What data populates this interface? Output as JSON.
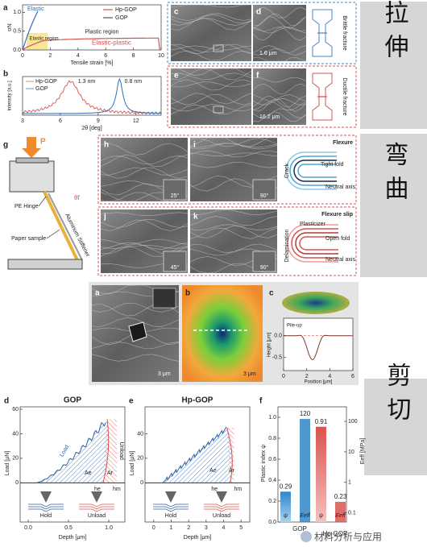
{
  "sections": [
    "拉伸",
    "弯曲",
    "剪切"
  ],
  "tension": {
    "a": {
      "label": "a",
      "ylabel": "σN",
      "xlabel": "Tensile strain [%]",
      "xlim": [
        0,
        10
      ],
      "xticks": [
        0,
        2,
        4,
        6,
        8,
        10
      ],
      "ylim": [
        0,
        1.2
      ],
      "yticks": [
        {
          "value": 0,
          "label": "0.0"
        },
        {
          "value": 0.5,
          "label": "0.5"
        },
        {
          "value": 1,
          "label": "1.0"
        }
      ],
      "legend": [
        "Hp-GOP",
        "GOP"
      ],
      "notes": [
        "Elastic",
        "Elastic region",
        "Plastic region",
        "Elastic-plastic"
      ]
    },
    "b": {
      "label": "b",
      "ylabel": "Intensity [a.u.]",
      "xlabel": "2θ [deg]",
      "xlim": [
        3,
        14
      ],
      "xticks": [
        3,
        6,
        9,
        12
      ],
      "legend": [
        "Hp-GOP",
        "GOP"
      ],
      "peaks": [
        "1.3 nm",
        "0.8 nm"
      ]
    },
    "images": [
      {
        "label": "c"
      },
      {
        "label": "d",
        "scale": "1.6 μm"
      },
      {
        "label": "e"
      },
      {
        "label": "f",
        "scale": "16.2 μm"
      }
    ],
    "fractures": [
      "Brittle fracture",
      "Ductile fracture"
    ]
  },
  "bending": {
    "g": {
      "label": "g",
      "force": "P",
      "hinge": "PE Hinge",
      "angle": "θf",
      "sample": "Paper sample",
      "stiffener": "Aluminum Stiffener"
    },
    "images": [
      {
        "label": "h",
        "angle": "25°"
      },
      {
        "label": "i",
        "angle": "90°"
      },
      {
        "label": "j",
        "angle": "45°"
      },
      {
        "label": "k",
        "angle": "90°"
      }
    ],
    "flexure": {
      "title": "Flexure",
      "crack": "Crack",
      "fold": "Tight fold",
      "axis": "Neutral axis"
    },
    "slip": {
      "title": "Flexure slip",
      "plasticizer": "Plasticizer",
      "delamination": "Delamination",
      "fold": "Open fold",
      "axis": "Neutral axis"
    }
  },
  "shear": {
    "a": {
      "label": "a",
      "scale": "3 μm"
    },
    "b": {
      "label": "b",
      "scale": "3 μm"
    },
    "c": {
      "label": "c",
      "ylabel": "Height [μm]",
      "xlabel": "Position [μm]",
      "note": "Pile-up",
      "xlim": [
        0,
        6
      ],
      "xticks": [
        0,
        2,
        4,
        6
      ],
      "ylim": [
        -0.8,
        0.4
      ],
      "yticks": [
        {
          "value": 0,
          "label": "0.0"
        },
        {
          "value": -0.5,
          "label": "-0.5"
        }
      ]
    },
    "d": {
      "label": "d",
      "title": "GOP",
      "ylabel": "Load [μN]",
      "xlabel": "Depth [μm]",
      "xlim": [
        -0.1,
        1.2
      ],
      "xticks": [
        {
          "value": 0,
          "label": "0.0"
        },
        {
          "value": 0.5,
          "label": "0.5"
        },
        {
          "value": 1,
          "label": "1.0"
        }
      ],
      "ylim": [
        -32,
        62
      ],
      "yticks": [
        0,
        20,
        40,
        60
      ],
      "notes": [
        "Load",
        "Unload",
        "Ar",
        "Ae",
        "he",
        "hm"
      ],
      "steps": [
        "Hold",
        "Unload"
      ]
    },
    "e": {
      "label": "e",
      "title": "Hp-GOP",
      "ylabel": "Load [μN]",
      "xlabel": "Depth [μm]",
      "xlim": [
        -0.5,
        5.5
      ],
      "xticks": [
        0,
        1,
        2,
        3,
        4,
        5
      ],
      "ylim": [
        -32,
        62
      ],
      "yticks": [
        0,
        20,
        40
      ],
      "notes": [
        "Ar",
        "Ae",
        "he",
        "hm"
      ],
      "steps": [
        "Hold",
        "Unload"
      ]
    }
  },
  "chart_data": {
    "type": "bar",
    "label": "f",
    "ylabel": "Plastic index ψ",
    "y2label": "Eeff [MPa]",
    "categories": [
      "GOP",
      "Hp-GOP"
    ],
    "series": [
      {
        "name": "ψ",
        "colors": [
          "#2f86c8",
          "#d9534f"
        ],
        "values": [
          0.29,
          0.91
        ]
      },
      {
        "name": "Eeff",
        "axis": "y2",
        "colors": [
          "#2f86c8",
          "#d9534f"
        ],
        "values": [
          120,
          0.23
        ]
      }
    ],
    "ylim": [
      0,
      1.1
    ],
    "yticks": [
      {
        "value": 0,
        "label": "0.0"
      },
      {
        "value": 0.2,
        "label": "0.2"
      },
      {
        "value": 0.4,
        "label": "0.4"
      },
      {
        "value": 0.6,
        "label": "0.6"
      },
      {
        "value": 0.8,
        "label": "0.8"
      },
      {
        "value": 1,
        "label": "1.0"
      }
    ],
    "y2lim": [
      0.05,
      300
    ],
    "y2ticks": [
      0.1,
      1,
      10,
      100
    ],
    "y2log": true
  },
  "watermark": "材料分析与应用"
}
